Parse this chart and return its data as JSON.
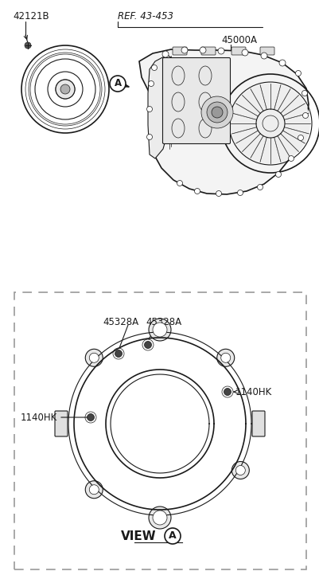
{
  "bg_color": "#ffffff",
  "line_color": "#1a1a1a",
  "gray_color": "#666666",
  "light_gray": "#cccccc",
  "dashed_color": "#999999",
  "label_42121B": "42121B",
  "label_ref": "REF. 43-453",
  "label_45000A": "45000A",
  "label_45328A_1": "45328A",
  "label_45328A_2": "45328A",
  "label_1140HK_L": "1140HK",
  "label_1140HK_R": "1140HK",
  "label_view": "VIEW",
  "label_A": "A",
  "fig_w": 4.01,
  "fig_h": 7.27,
  "dpi": 100
}
